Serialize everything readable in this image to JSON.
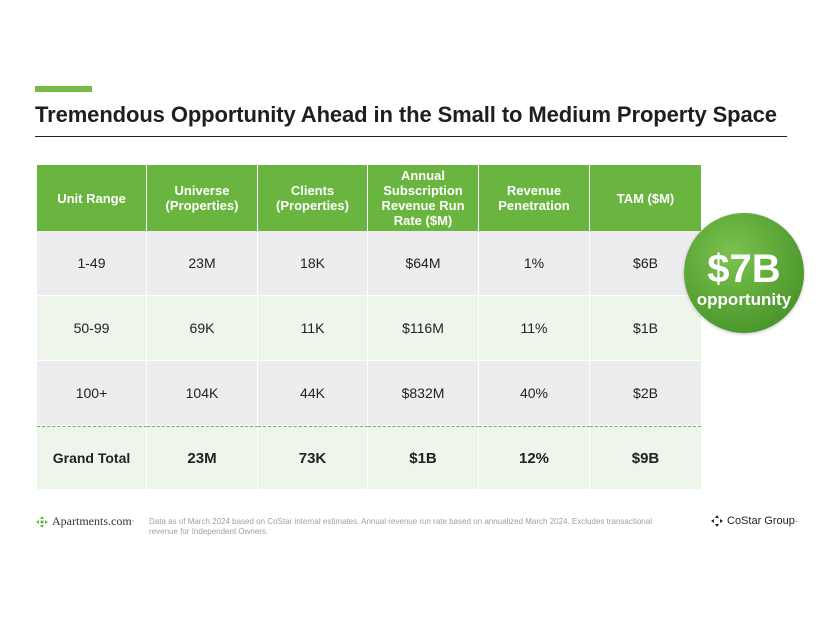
{
  "slide": {
    "title": "Tremendous Opportunity Ahead in the Small to Medium Property Space",
    "accent_color": "#7ab648"
  },
  "table": {
    "headers": [
      "Unit Range",
      "Universe (Properties)",
      "Clients (Properties)",
      "Annual Subscription Revenue Run Rate ($M)",
      "Revenue Penetration",
      "TAM ($M)"
    ],
    "rows": [
      [
        "1-49",
        "23M",
        "18K",
        "$64M",
        "1%",
        "$6B"
      ],
      [
        "50-99",
        "69K",
        "11K",
        "$116M",
        "11%",
        "$1B"
      ],
      [
        "100+",
        "104K",
        "44K",
        "$832M",
        "40%",
        "$2B"
      ]
    ],
    "total": [
      "Grand Total",
      "23M",
      "73K",
      "$1B",
      "12%",
      "$9B"
    ],
    "header_color": "#69b53f"
  },
  "badge": {
    "amount": "$7B",
    "label": "opportunity"
  },
  "footer": {
    "left_logo_text": "Apartments.com",
    "left_logo_mark": "·",
    "note": "Data as of March 2024 based on CoStar internal estimates. Annual revenue run rate based on annualized March 2024. Excludes transactional revenue for Independent Owners.",
    "right_logo_text": "CoStar Group",
    "right_logo_mark": "·"
  }
}
